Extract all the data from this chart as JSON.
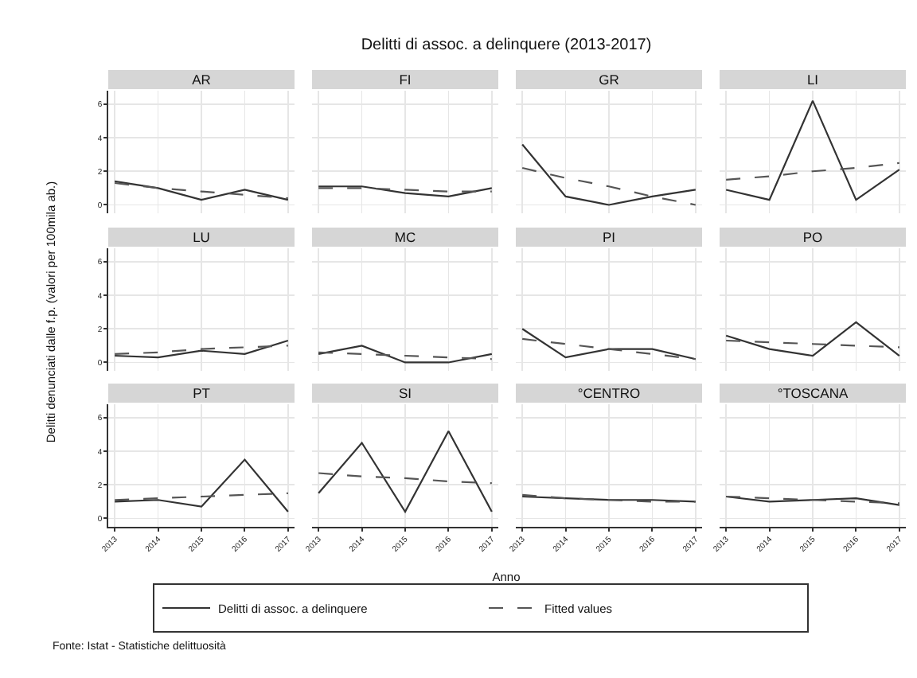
{
  "chart_data": [
    {
      "type": "line",
      "title": "AR",
      "annotations": [
        "Delitti di assoc. a delinquere (2013-2017)",
        "Fonte: Istat - Statistiche delittuosità"
      ],
      "legend": "bottom",
      "categories": [
        "2013",
        "2014",
        "2015",
        "2016",
        "2017"
      ],
      "ylim": [
        -0.5,
        6.8
      ],
      "yticks": [
        0,
        2,
        4,
        6
      ],
      "grid": true,
      "tick_labels": "y",
      "series": [
        {
          "name": "Delitti di assoc. a delinquere",
          "color": "#333333",
          "line_style": "solid",
          "values": [
            1.4,
            1.0,
            0.3,
            0.9,
            0.3
          ]
        },
        {
          "name": "Fitted values",
          "color": "#555555",
          "line_style": "dashed",
          "values": [
            1.3,
            1.0,
            0.8,
            0.6,
            0.4
          ]
        }
      ]
    },
    {
      "type": "line",
      "title": "FI",
      "categories": [
        "2013",
        "2014",
        "2015",
        "2016",
        "2017"
      ],
      "ylim": [
        -0.5,
        6.8
      ],
      "yticks": [
        0,
        2,
        4,
        6
      ],
      "grid": true,
      "tick_labels": false,
      "series": [
        {
          "color": "#333333",
          "line_style": "solid",
          "values": [
            1.1,
            1.1,
            0.7,
            0.5,
            1.0
          ]
        },
        {
          "color": "#555555",
          "line_style": "dashed",
          "values": [
            1.0,
            1.0,
            0.9,
            0.8,
            0.8
          ]
        }
      ]
    },
    {
      "type": "line",
      "title": "GR",
      "categories": [
        "2013",
        "2014",
        "2015",
        "2016",
        "2017"
      ],
      "ylim": [
        -0.5,
        6.8
      ],
      "yticks": [
        0,
        2,
        4,
        6
      ],
      "grid": true,
      "tick_labels": false,
      "series": [
        {
          "color": "#333333",
          "line_style": "solid",
          "values": [
            3.6,
            0.5,
            0.0,
            0.5,
            0.9
          ]
        },
        {
          "color": "#555555",
          "line_style": "dashed",
          "values": [
            2.2,
            1.6,
            1.1,
            0.5,
            0.0
          ]
        }
      ]
    },
    {
      "type": "line",
      "title": "LI",
      "categories": [
        "2013",
        "2014",
        "2015",
        "2016",
        "2017"
      ],
      "ylim": [
        -0.5,
        6.8
      ],
      "yticks": [
        0,
        2,
        4,
        6
      ],
      "grid": true,
      "tick_labels": false,
      "series": [
        {
          "color": "#333333",
          "line_style": "solid",
          "values": [
            0.9,
            0.3,
            6.2,
            0.3,
            2.1
          ]
        },
        {
          "color": "#555555",
          "line_style": "dashed",
          "values": [
            1.5,
            1.7,
            2.0,
            2.2,
            2.5
          ]
        }
      ]
    },
    {
      "type": "line",
      "title": "LU",
      "ylabel": "Delitti denunciati dalle f.p. (valori per 100mila ab.)",
      "categories": [
        "2013",
        "2014",
        "2015",
        "2016",
        "2017"
      ],
      "ylim": [
        -0.5,
        6.8
      ],
      "yticks": [
        0,
        2,
        4,
        6
      ],
      "grid": true,
      "tick_labels": "y",
      "series": [
        {
          "color": "#333333",
          "line_style": "solid",
          "values": [
            0.4,
            0.3,
            0.7,
            0.5,
            1.3
          ]
        },
        {
          "color": "#555555",
          "line_style": "dashed",
          "values": [
            0.5,
            0.6,
            0.8,
            0.9,
            1.0
          ]
        }
      ]
    },
    {
      "type": "line",
      "title": "MC",
      "categories": [
        "2013",
        "2014",
        "2015",
        "2016",
        "2017"
      ],
      "ylim": [
        -0.5,
        6.8
      ],
      "yticks": [
        0,
        2,
        4,
        6
      ],
      "grid": true,
      "tick_labels": false,
      "series": [
        {
          "color": "#333333",
          "line_style": "solid",
          "values": [
            0.5,
            1.0,
            0.0,
            0.0,
            0.5
          ]
        },
        {
          "color": "#555555",
          "line_style": "dashed",
          "values": [
            0.6,
            0.5,
            0.4,
            0.3,
            0.2
          ]
        }
      ]
    },
    {
      "type": "line",
      "title": "PI",
      "categories": [
        "2013",
        "2014",
        "2015",
        "2016",
        "2017"
      ],
      "ylim": [
        -0.5,
        6.8
      ],
      "yticks": [
        0,
        2,
        4,
        6
      ],
      "grid": true,
      "tick_labels": false,
      "series": [
        {
          "color": "#333333",
          "line_style": "solid",
          "values": [
            2.0,
            0.3,
            0.8,
            0.8,
            0.2
          ]
        },
        {
          "color": "#555555",
          "line_style": "dashed",
          "values": [
            1.4,
            1.1,
            0.8,
            0.5,
            0.2
          ]
        }
      ]
    },
    {
      "type": "line",
      "title": "PO",
      "categories": [
        "2013",
        "2014",
        "2015",
        "2016",
        "2017"
      ],
      "ylim": [
        -0.5,
        6.8
      ],
      "yticks": [
        0,
        2,
        4,
        6
      ],
      "grid": true,
      "tick_labels": false,
      "series": [
        {
          "color": "#333333",
          "line_style": "solid",
          "values": [
            1.6,
            0.8,
            0.4,
            2.4,
            0.4
          ]
        },
        {
          "color": "#555555",
          "line_style": "dashed",
          "values": [
            1.3,
            1.2,
            1.1,
            1.0,
            0.9
          ]
        }
      ]
    },
    {
      "type": "line",
      "title": "PT",
      "categories": [
        "2013",
        "2014",
        "2015",
        "2016",
        "2017"
      ],
      "ylim": [
        -0.5,
        6.8
      ],
      "yticks": [
        0,
        2,
        4,
        6
      ],
      "grid": true,
      "series": [
        {
          "color": "#333333",
          "line_style": "solid",
          "values": [
            1.0,
            1.1,
            0.7,
            3.5,
            0.4
          ]
        },
        {
          "color": "#555555",
          "line_style": "dashed",
          "values": [
            1.1,
            1.2,
            1.3,
            1.4,
            1.5
          ]
        }
      ]
    },
    {
      "type": "line",
      "title": "SI",
      "xlabel": "Anno",
      "categories": [
        "2013",
        "2014",
        "2015",
        "2016",
        "2017"
      ],
      "ylim": [
        -0.5,
        6.8
      ],
      "yticks": [
        0,
        2,
        4,
        6
      ],
      "grid": true,
      "tick_labels": "x",
      "series": [
        {
          "color": "#333333",
          "line_style": "solid",
          "values": [
            1.5,
            4.5,
            0.4,
            5.2,
            0.4
          ]
        },
        {
          "color": "#555555",
          "line_style": "dashed",
          "values": [
            2.7,
            2.5,
            2.4,
            2.2,
            2.1
          ]
        }
      ]
    },
    {
      "type": "line",
      "title": "°CENTRO",
      "categories": [
        "2013",
        "2014",
        "2015",
        "2016",
        "2017"
      ],
      "ylim": [
        -0.5,
        6.8
      ],
      "yticks": [
        0,
        2,
        4,
        6
      ],
      "grid": true,
      "tick_labels": "x",
      "series": [
        {
          "color": "#333333",
          "line_style": "solid",
          "values": [
            1.3,
            1.2,
            1.1,
            1.1,
            1.0
          ]
        },
        {
          "color": "#555555",
          "line_style": "dashed",
          "values": [
            1.4,
            1.2,
            1.1,
            1.0,
            1.0
          ]
        }
      ]
    },
    {
      "type": "line",
      "title": "°TOSCANA",
      "categories": [
        "2013",
        "2014",
        "2015",
        "2016",
        "2017"
      ],
      "ylim": [
        -0.5,
        6.8
      ],
      "yticks": [
        0,
        2,
        4,
        6
      ],
      "grid": true,
      "tick_labels": "x",
      "series": [
        {
          "color": "#333333",
          "line_style": "solid",
          "values": [
            1.3,
            1.0,
            1.1,
            1.2,
            0.8
          ]
        },
        {
          "color": "#555555",
          "line_style": "dashed",
          "values": [
            1.3,
            1.2,
            1.1,
            1.0,
            0.9
          ]
        }
      ]
    }
  ]
}
